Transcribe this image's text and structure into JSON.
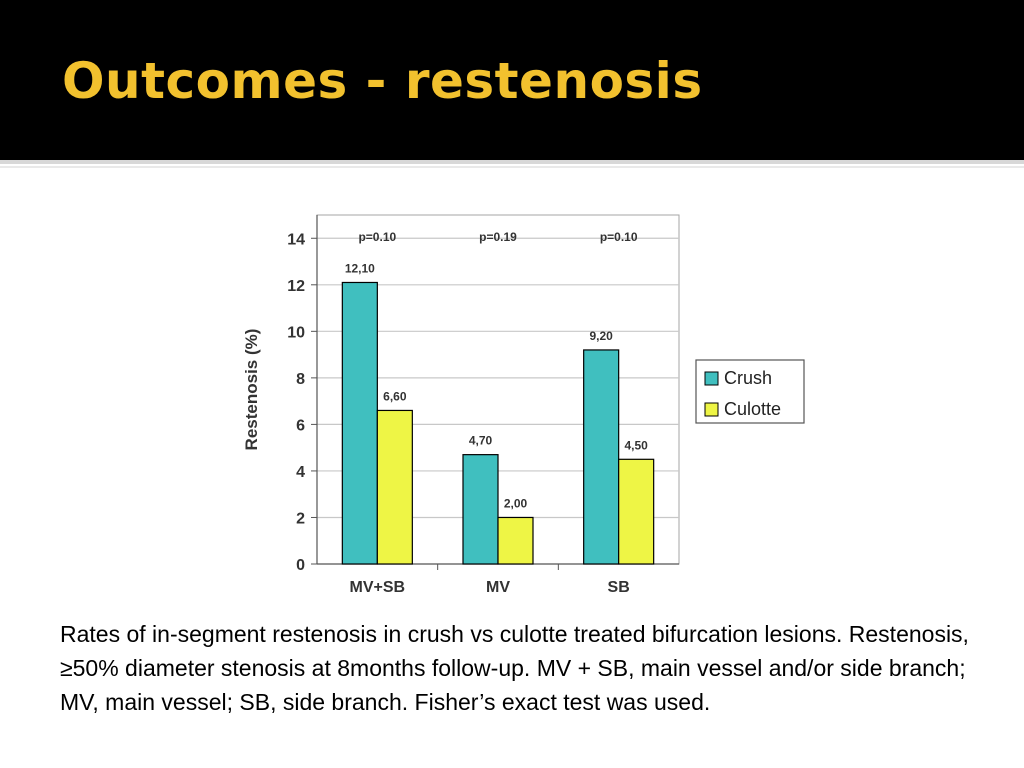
{
  "slide": {
    "title": "Outcomes - restenosis",
    "caption": "Rates of in-segment restenosis in crush vs culotte treated bifurcation lesions. Restenosis, ≥50% diameter stenosis at 8months follow-up. MV + SB, main vessel and/or side branch; MV, main vessel; SB, side branch. Fisher’s exact test was used."
  },
  "colors": {
    "title": "#f2c12e",
    "background_header": "#000000",
    "crush": "#40bfbf",
    "culotte": "#eef545"
  },
  "chart_data": {
    "type": "bar",
    "categories": [
      "MV+SB",
      "MV",
      "SB"
    ],
    "series": [
      {
        "name": "Crush",
        "values": [
          12.1,
          4.7,
          9.2
        ],
        "labels": [
          "12,10",
          "4,70",
          "9,20"
        ]
      },
      {
        "name": "Culotte",
        "values": [
          6.6,
          2.0,
          4.5
        ],
        "labels": [
          "6,60",
          "2,00",
          "4,50"
        ]
      }
    ],
    "annotations": [
      "p=0.10",
      "p=0.19",
      "p=0.10"
    ],
    "ylabel": "Restenosis (%)",
    "xlabel": "",
    "ylim": [
      0,
      15
    ],
    "yticks": [
      0,
      2,
      4,
      6,
      8,
      10,
      12,
      14
    ],
    "grid": true,
    "legend_position": "right"
  }
}
